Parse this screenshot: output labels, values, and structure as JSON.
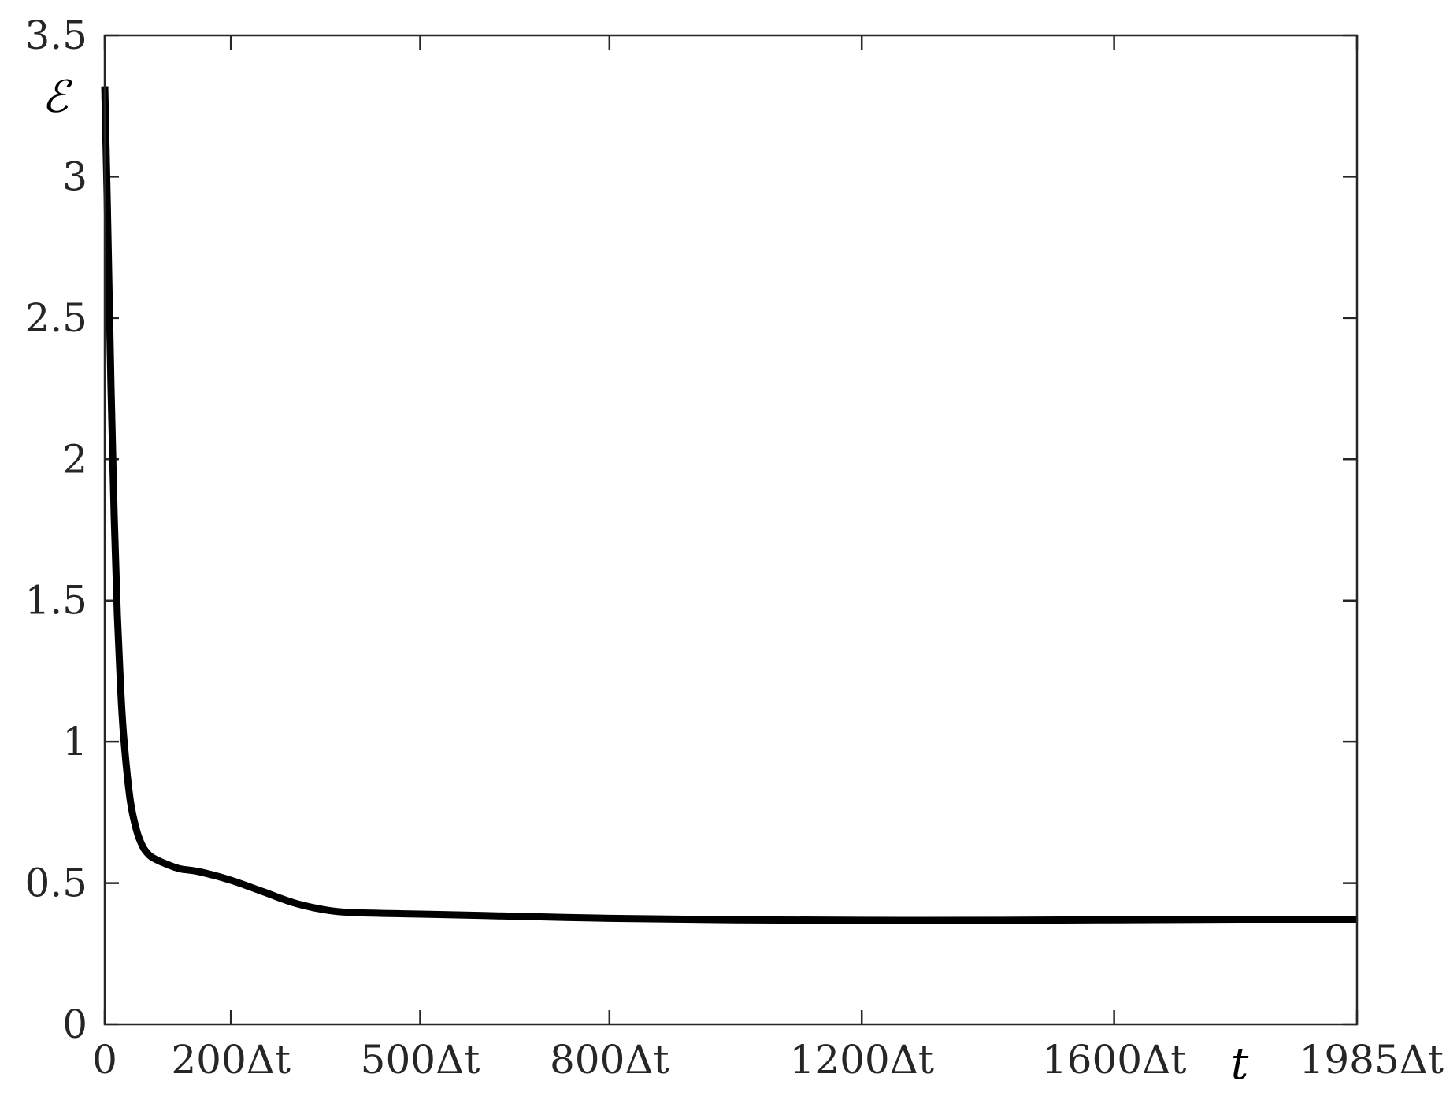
{
  "chart_data": {
    "type": "line",
    "title": "",
    "xlabel": "t",
    "ylabel": "ℰ",
    "xlim": [
      0,
      1985
    ],
    "ylim": [
      0,
      3.5
    ],
    "grid": false,
    "legend": "none",
    "line_color": "#000000",
    "x_ticks": [
      {
        "value": 0,
        "label": "0"
      },
      {
        "value": 200,
        "label": "200Δt"
      },
      {
        "value": 500,
        "label": "500Δt"
      },
      {
        "value": 800,
        "label": "800Δt"
      },
      {
        "value": 1200,
        "label": "1200Δt"
      },
      {
        "value": 1600,
        "label": "1600Δt"
      },
      {
        "value": 1985,
        "label": "1985Δt"
      }
    ],
    "y_ticks": [
      {
        "value": 0,
        "label": "0"
      },
      {
        "value": 0.5,
        "label": "0.5"
      },
      {
        "value": 1,
        "label": "1"
      },
      {
        "value": 1.5,
        "label": "1.5"
      },
      {
        "value": 2,
        "label": "2"
      },
      {
        "value": 2.5,
        "label": "2.5"
      },
      {
        "value": 3,
        "label": "3"
      },
      {
        "value": 3.5,
        "label": "3.5"
      }
    ],
    "series": [
      {
        "x": [
          0,
          5,
          10,
          15,
          20,
          25,
          30,
          40,
          50,
          60,
          70,
          80,
          100,
          120,
          150,
          200,
          250,
          300,
          350,
          400,
          500,
          600,
          800,
          1000,
          1200,
          1400,
          1600,
          1800,
          1985
        ],
        "y": [
          3.32,
          2.8,
          2.25,
          1.8,
          1.45,
          1.2,
          1.02,
          0.8,
          0.69,
          0.63,
          0.6,
          0.585,
          0.565,
          0.55,
          0.54,
          0.51,
          0.47,
          0.43,
          0.405,
          0.395,
          0.39,
          0.385,
          0.375,
          0.37,
          0.368,
          0.368,
          0.37,
          0.372,
          0.372
        ]
      }
    ]
  }
}
